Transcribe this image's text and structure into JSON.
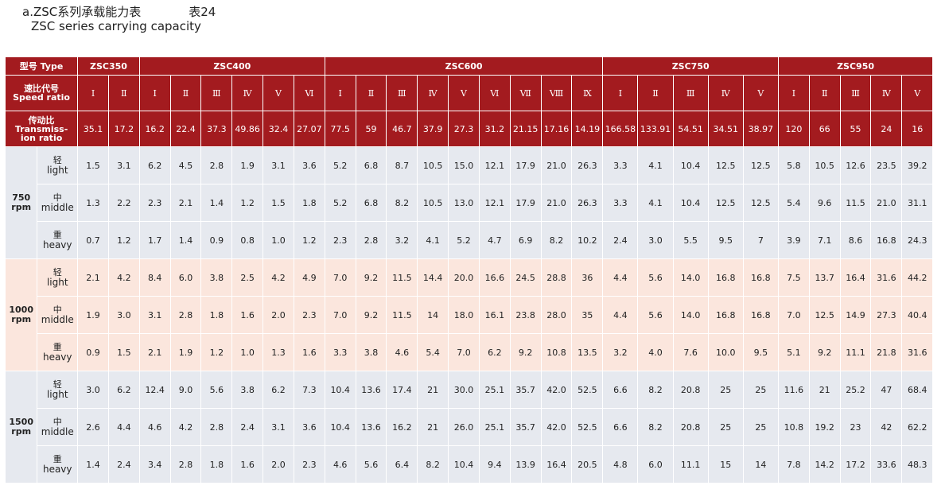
{
  "title": {
    "line1": "a.ZSC系列承载能力表",
    "table_no": "表24",
    "line2": "ZSC series carrying capacity"
  },
  "header": {
    "type_label": "型号 Type",
    "ratio_label_cn": "速比代号",
    "ratio_label_en": "Speed ratio",
    "trans_label_cn": "传动比",
    "trans_label_en1": "Transmiss-",
    "trans_label_en2": "ion ratio"
  },
  "groups": [
    {
      "name": "ZSC350",
      "span": 2
    },
    {
      "name": "ZSC400",
      "span": 6
    },
    {
      "name": "ZSC600",
      "span": 9
    },
    {
      "name": "ZSC750",
      "span": 5
    },
    {
      "name": "ZSC950",
      "span": 5
    }
  ],
  "speed_ratio_codes": [
    "Ⅰ",
    "Ⅱ",
    "Ⅰ",
    "Ⅱ",
    "Ⅲ",
    "Ⅳ",
    "Ⅴ",
    "Ⅵ",
    "Ⅰ",
    "Ⅱ",
    "Ⅲ",
    "Ⅳ",
    "Ⅴ",
    "Ⅵ",
    "Ⅶ",
    "Ⅷ",
    "Ⅸ",
    "Ⅰ",
    "Ⅱ",
    "Ⅲ",
    "Ⅳ",
    "Ⅴ",
    "Ⅰ",
    "Ⅱ",
    "Ⅲ",
    "Ⅳ",
    "Ⅴ"
  ],
  "transmission_ratios": [
    "35.1",
    "17.2",
    "16.2",
    "22.4",
    "37.3",
    "49.86",
    "32.4",
    "27.07",
    "77.5",
    "59",
    "46.7",
    "37.9",
    "27.3",
    "31.2",
    "21.15",
    "17.16",
    "14.19",
    "166.58",
    "133.91",
    "54.51",
    "34.51",
    "38.97",
    "120",
    "66",
    "55",
    "24",
    "16"
  ],
  "speeds": [
    {
      "speed": "750",
      "unit": "rpm",
      "band": "band-a",
      "loads": [
        {
          "cn": "轻",
          "en": "light",
          "values": [
            "1.5",
            "3.1",
            "6.2",
            "4.5",
            "2.8",
            "1.9",
            "3.1",
            "3.6",
            "5.2",
            "6.8",
            "8.7",
            "10.5",
            "15.0",
            "12.1",
            "17.9",
            "21.0",
            "26.3",
            "3.3",
            "4.1",
            "10.4",
            "12.5",
            "12.5",
            "5.8",
            "10.5",
            "12.6",
            "23.5",
            "39.2"
          ]
        },
        {
          "cn": "中",
          "en": "middle",
          "values": [
            "1.3",
            "2.2",
            "2.3",
            "2.1",
            "1.4",
            "1.2",
            "1.5",
            "1.8",
            "5.2",
            "6.8",
            "8.2",
            "10.5",
            "13.0",
            "12.1",
            "17.9",
            "21.0",
            "26.3",
            "3.3",
            "4.1",
            "10.4",
            "12.5",
            "12.5",
            "5.4",
            "9.6",
            "11.5",
            "21.0",
            "31.1"
          ]
        },
        {
          "cn": "重",
          "en": "heavy",
          "values": [
            "0.7",
            "1.2",
            "1.7",
            "1.4",
            "0.9",
            "0.8",
            "1.0",
            "1.2",
            "2.3",
            "2.8",
            "3.2",
            "4.1",
            "5.2",
            "4.7",
            "6.9",
            "8.2",
            "10.2",
            "2.4",
            "3.0",
            "5.5",
            "9.5",
            "7",
            "3.9",
            "7.1",
            "8.6",
            "16.8",
            "24.3"
          ]
        }
      ]
    },
    {
      "speed": "1000",
      "unit": "rpm",
      "band": "band-b",
      "loads": [
        {
          "cn": "轻",
          "en": "light",
          "values": [
            "2.1",
            "4.2",
            "8.4",
            "6.0",
            "3.8",
            "2.5",
            "4.2",
            "4.9",
            "7.0",
            "9.2",
            "11.5",
            "14.4",
            "20.0",
            "16.6",
            "24.5",
            "28.8",
            "36",
            "4.4",
            "5.6",
            "14.0",
            "16.8",
            "16.8",
            "7.5",
            "13.7",
            "16.4",
            "31.6",
            "44.2"
          ]
        },
        {
          "cn": "中",
          "en": "middle",
          "values": [
            "1.9",
            "3.0",
            "3.1",
            "2.8",
            "1.8",
            "1.6",
            "2.0",
            "2.3",
            "7.0",
            "9.2",
            "11.5",
            "14",
            "18.0",
            "16.1",
            "23.8",
            "28.0",
            "35",
            "4.4",
            "5.6",
            "14.0",
            "16.8",
            "16.8",
            "7.0",
            "12.5",
            "14.9",
            "27.3",
            "40.4"
          ]
        },
        {
          "cn": "重",
          "en": "heavy",
          "values": [
            "0.9",
            "1.5",
            "2.1",
            "1.9",
            "1.2",
            "1.0",
            "1.3",
            "1.6",
            "3.3",
            "3.8",
            "4.6",
            "5.4",
            "7.0",
            "6.2",
            "9.2",
            "10.8",
            "13.5",
            "3.2",
            "4.0",
            "7.6",
            "10.0",
            "9.5",
            "5.1",
            "9.2",
            "11.1",
            "21.8",
            "31.6"
          ]
        }
      ]
    },
    {
      "speed": "1500",
      "unit": "rpm",
      "band": "band-c",
      "loads": [
        {
          "cn": "轻",
          "en": "light",
          "values": [
            "3.0",
            "6.2",
            "12.4",
            "9.0",
            "5.6",
            "3.8",
            "6.2",
            "7.3",
            "10.4",
            "13.6",
            "17.4",
            "21",
            "30.0",
            "25.1",
            "35.7",
            "42.0",
            "52.5",
            "6.6",
            "8.2",
            "20.8",
            "25",
            "25",
            "11.6",
            "21",
            "25.2",
            "47",
            "68.4"
          ]
        },
        {
          "cn": "中",
          "en": "middle",
          "values": [
            "2.6",
            "4.4",
            "4.6",
            "4.2",
            "2.8",
            "2.4",
            "3.1",
            "3.6",
            "10.4",
            "13.6",
            "16.2",
            "21",
            "26.0",
            "25.1",
            "35.7",
            "42.0",
            "52.5",
            "6.6",
            "8.2",
            "20.8",
            "25",
            "25",
            "10.8",
            "19.2",
            "23",
            "42",
            "62.2"
          ]
        },
        {
          "cn": "重",
          "en": "heavy",
          "values": [
            "1.4",
            "2.4",
            "3.4",
            "2.8",
            "1.8",
            "1.6",
            "2.0",
            "2.3",
            "4.6",
            "5.6",
            "6.4",
            "8.2",
            "10.4",
            "9.4",
            "13.9",
            "16.4",
            "20.5",
            "4.8",
            "6.0",
            "11.1",
            "15",
            "14",
            "7.8",
            "14.2",
            "17.2",
            "33.6",
            "48.3"
          ]
        }
      ]
    }
  ],
  "colors": {
    "header_bg": "#a31b1f",
    "band_grey": "#e6e9ef",
    "band_peach": "#fbe6dd"
  }
}
